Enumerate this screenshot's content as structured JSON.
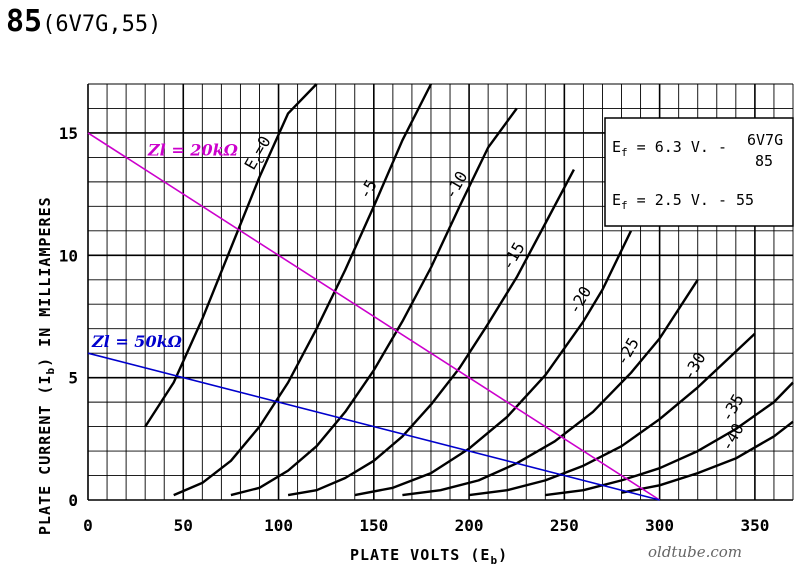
{
  "header": {
    "tube": "85",
    "equivalents": "(6V7G,55)"
  },
  "watermark": "oldtube.com",
  "chart_data": {
    "type": "line",
    "xlabel_prefix": "PLATE VOLTS (E",
    "xlabel_sub": "b",
    "xlabel_suffix": ")",
    "ylabel_prefix": "PLATE CURRENT (I",
    "ylabel_sub": "b",
    "ylabel_suffix": ") IN MILLIAMPERES",
    "xlim": [
      0,
      370
    ],
    "ylim": [
      0,
      17
    ],
    "x_ticks": [
      0,
      50,
      100,
      150,
      200,
      250,
      300,
      350
    ],
    "y_ticks": [
      0,
      5,
      10,
      15
    ],
    "grid": true,
    "series": [
      {
        "name": "Ec=0",
        "label_prefix": "E",
        "label_sub": "c",
        "label_suffix": "=0",
        "x": [
          30,
          45,
          60,
          75,
          90,
          105,
          120
        ],
        "y": [
          3.0,
          4.8,
          7.4,
          10.3,
          13.2,
          15.8,
          17.0
        ]
      },
      {
        "name": "-5",
        "x": [
          45,
          60,
          75,
          90,
          105,
          120,
          135,
          150,
          165,
          180
        ],
        "y": [
          0.2,
          0.7,
          1.6,
          3.0,
          4.8,
          7.0,
          9.4,
          12.0,
          14.7,
          17.0
        ]
      },
      {
        "name": "-10",
        "x": [
          75,
          90,
          105,
          120,
          135,
          150,
          165,
          180,
          195,
          210,
          225
        ],
        "y": [
          0.2,
          0.5,
          1.2,
          2.2,
          3.6,
          5.3,
          7.3,
          9.5,
          12.0,
          14.4,
          16.0
        ]
      },
      {
        "name": "-15",
        "x": [
          105,
          120,
          135,
          150,
          165,
          180,
          195,
          210,
          225,
          240,
          255
        ],
        "y": [
          0.2,
          0.4,
          0.9,
          1.6,
          2.6,
          3.9,
          5.4,
          7.2,
          9.1,
          11.3,
          13.5
        ]
      },
      {
        "name": "-20",
        "x": [
          140,
          160,
          180,
          200,
          220,
          240,
          260,
          270,
          285
        ],
        "y": [
          0.2,
          0.5,
          1.1,
          2.1,
          3.4,
          5.1,
          7.3,
          8.6,
          11.0
        ]
      },
      {
        "name": "-25",
        "x": [
          165,
          185,
          205,
          225,
          245,
          265,
          285,
          300,
          320
        ],
        "y": [
          0.2,
          0.4,
          0.8,
          1.5,
          2.4,
          3.6,
          5.2,
          6.6,
          9.0
        ]
      },
      {
        "name": "-30",
        "x": [
          200,
          220,
          240,
          260,
          280,
          300,
          320,
          335,
          350
        ],
        "y": [
          0.2,
          0.4,
          0.8,
          1.4,
          2.2,
          3.3,
          4.6,
          5.7,
          6.8
        ]
      },
      {
        "name": "-35",
        "x": [
          240,
          260,
          280,
          300,
          320,
          340,
          360,
          370
        ],
        "y": [
          0.2,
          0.4,
          0.8,
          1.3,
          2.0,
          2.9,
          4.0,
          4.8
        ]
      },
      {
        "name": "-40",
        "x": [
          280,
          300,
          320,
          340,
          360,
          370
        ],
        "y": [
          0.3,
          0.6,
          1.1,
          1.7,
          2.6,
          3.2
        ]
      }
    ],
    "load_lines": [
      {
        "name": "Zl = 20kΩ",
        "color": "#cc00cc",
        "x": [
          0,
          300
        ],
        "y": [
          15,
          0
        ]
      },
      {
        "name": "Zl = 50kΩ",
        "color": "#0000cc",
        "x": [
          0,
          300
        ],
        "y": [
          6,
          0
        ]
      }
    ],
    "legend": {
      "placement": "top-right",
      "line1_prefix": "E",
      "line1_sub": "f",
      "line1_value": " = 6.3 V. - ",
      "line1_tubes_a": "6V7G",
      "line1_tubes_b": "85",
      "line2_prefix": "E",
      "line2_sub": "f",
      "line2_value": " = 2.5 V. - 55"
    }
  }
}
